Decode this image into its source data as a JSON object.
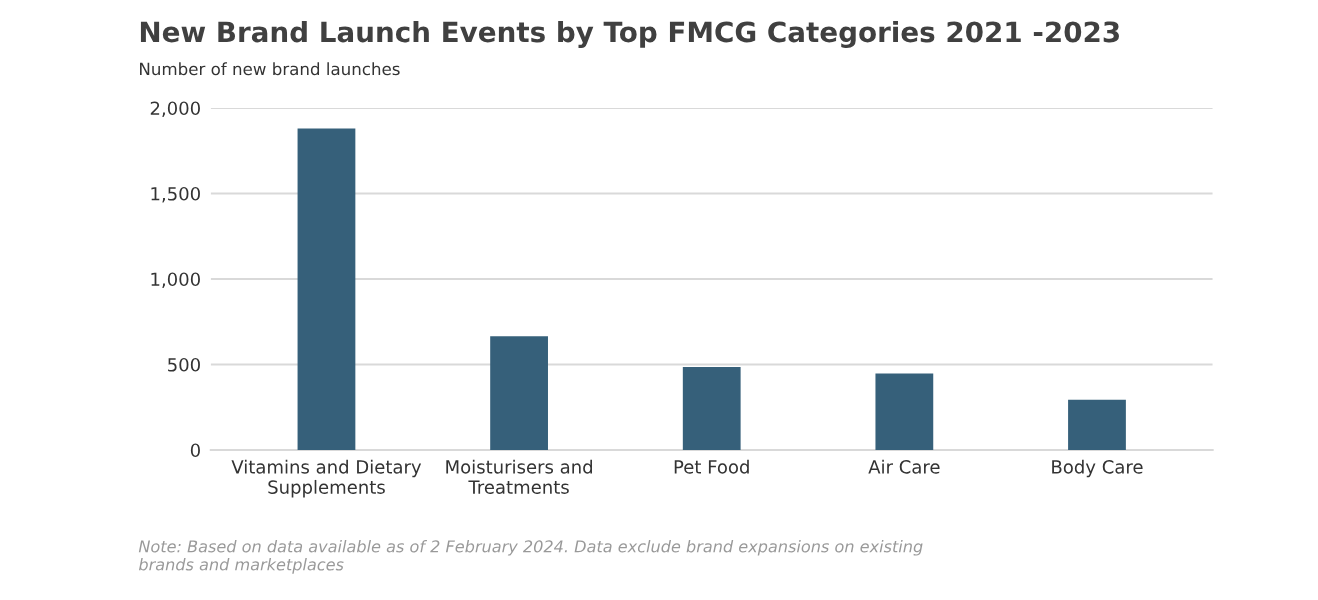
{
  "chart_data": {
    "type": "bar",
    "title": "New Brand Launch Events by Top FMCG Categories 2021 -2023",
    "subtitle": "Number of new brand launches",
    "categories": [
      "Vitamins and Dietary\nSupplements",
      "Moisturisers and\nTreatments",
      "Pet Food",
      "Air Care",
      "Body Care"
    ],
    "values": [
      1880,
      665,
      486,
      448,
      294
    ],
    "color": "#36607a",
    "ylim": [
      0,
      2000
    ],
    "yticks": [
      {
        "value": 0,
        "label": "0"
      },
      {
        "value": 500,
        "label": "500"
      },
      {
        "value": 1000,
        "label": "1,000"
      },
      {
        "value": 1500,
        "label": "1,500"
      },
      {
        "value": 2000,
        "label": "2,000"
      }
    ],
    "grid": "y",
    "annotations": [
      "Note: Based on data available as of 2 February 2024. Data exclude brand expansions on existing\nbrands and marketplaces"
    ]
  }
}
